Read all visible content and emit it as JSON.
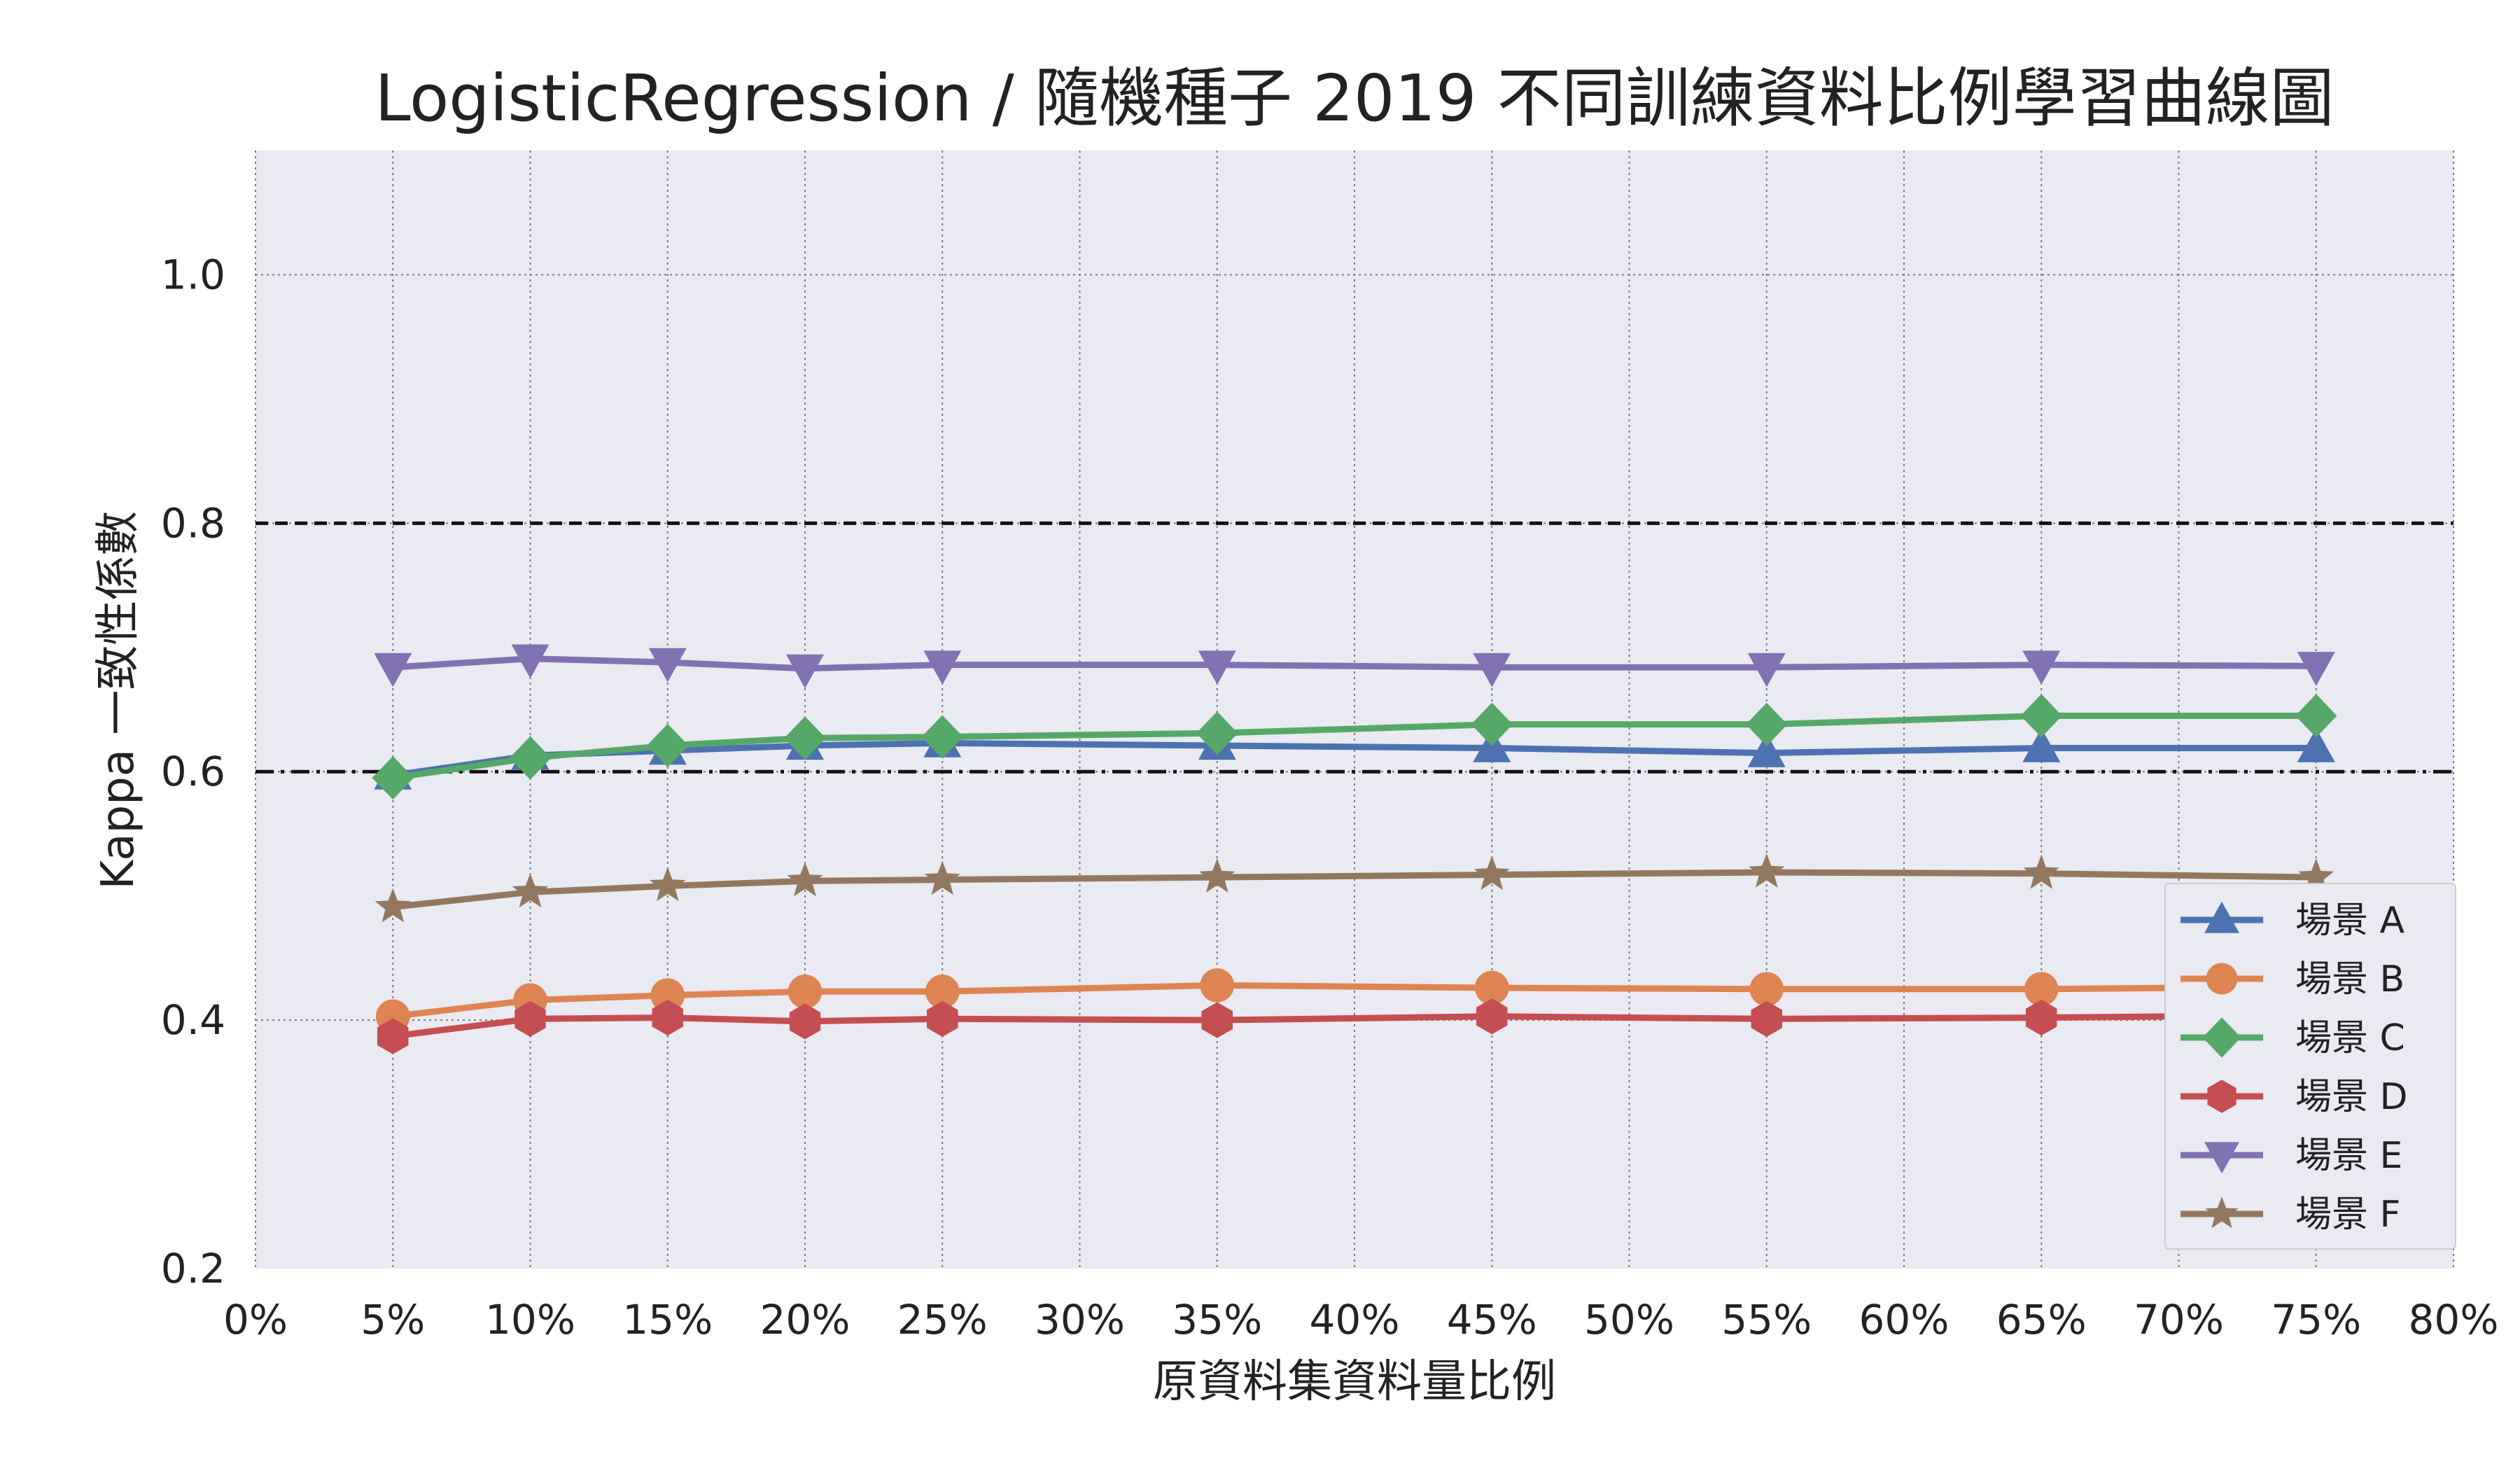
{
  "chart_data": {
    "type": "line",
    "title": "LogisticRegression / 隨機種子 2019 不同訓練資料比例學習曲線圖",
    "xlabel": "原資料集資料量比例",
    "ylabel": "Kappa 一致性係數",
    "xlim": [
      0,
      80
    ],
    "ylim": [
      0.2,
      1.1
    ],
    "x_ticks": [
      "0%",
      "5%",
      "10%",
      "15%",
      "20%",
      "25%",
      "30%",
      "35%",
      "40%",
      "45%",
      "50%",
      "55%",
      "60%",
      "65%",
      "70%",
      "75%",
      "80%"
    ],
    "y_ticks": [
      "0.2",
      "0.4",
      "0.6",
      "0.8",
      "1.0"
    ],
    "x": [
      5,
      10,
      15,
      20,
      25,
      35,
      45,
      55,
      65,
      75
    ],
    "series": [
      {
        "name": "場景 A",
        "marker": "triangle-up",
        "color": "#4C72B0",
        "values": [
          0.597,
          0.613,
          0.617,
          0.621,
          0.623,
          0.621,
          0.619,
          0.615,
          0.619,
          0.619
        ]
      },
      {
        "name": "場景 B",
        "marker": "circle",
        "color": "#DD8452",
        "values": [
          0.403,
          0.416,
          0.42,
          0.423,
          0.423,
          0.428,
          0.426,
          0.425,
          0.425,
          0.427
        ]
      },
      {
        "name": "場景 C",
        "marker": "diamond",
        "color": "#55A868",
        "values": [
          0.595,
          0.611,
          0.621,
          0.627,
          0.628,
          0.631,
          0.638,
          0.638,
          0.645,
          0.645
        ]
      },
      {
        "name": "場景 D",
        "marker": "hexagon",
        "color": "#C44E52",
        "values": [
          0.387,
          0.401,
          0.402,
          0.399,
          0.401,
          0.4,
          0.403,
          0.401,
          0.402,
          0.404
        ]
      },
      {
        "name": "場景 E",
        "marker": "triangle-down",
        "color": "#8172B3",
        "values": [
          0.684,
          0.691,
          0.688,
          0.683,
          0.686,
          0.686,
          0.684,
          0.684,
          0.686,
          0.685
        ]
      },
      {
        "name": "場景 F",
        "marker": "star",
        "color": "#937860",
        "values": [
          0.491,
          0.503,
          0.508,
          0.512,
          0.513,
          0.515,
          0.517,
          0.519,
          0.518,
          0.515
        ]
      }
    ],
    "reference_lines": [
      {
        "y": 0.8,
        "style": "dashed",
        "color": "#111111"
      },
      {
        "y": 0.6,
        "style": "dash-dot",
        "color": "#111111"
      }
    ],
    "grid": true,
    "legend_position": "lower-right",
    "background": "#EAEAF2"
  }
}
